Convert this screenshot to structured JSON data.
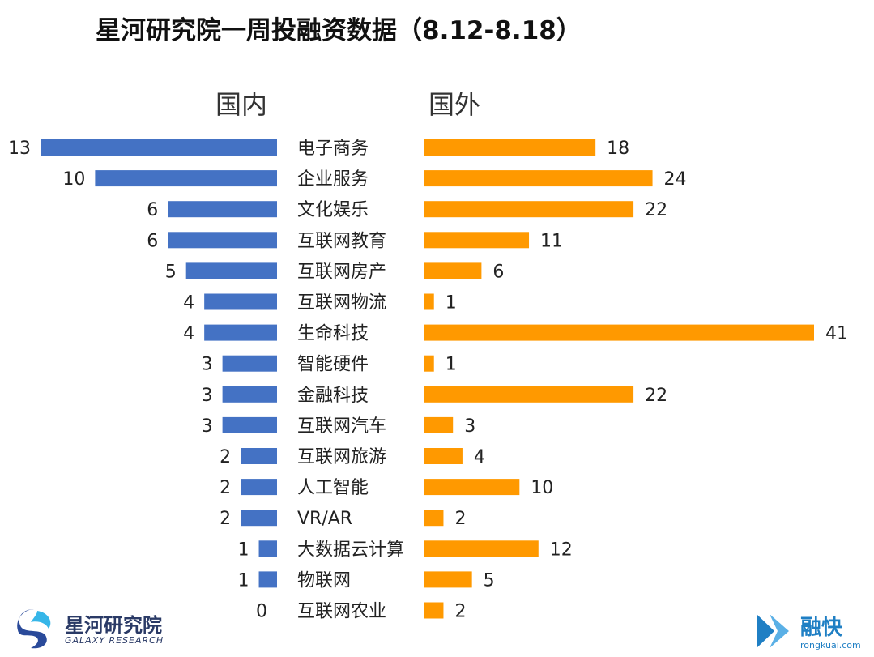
{
  "title": "星河研究院一周投融资数据（8.12-8.18）",
  "colors": {
    "domestic": "#4472c4",
    "foreign": "#ff9900",
    "text": "#222222"
  },
  "logos": {
    "left": {
      "name": "星河研究院",
      "subtitle": "GALAXY RESEARCH"
    },
    "right": {
      "name": "融快",
      "url": "rongkuai.com"
    }
  },
  "chart_data": {
    "type": "bar",
    "orientation": "horizontal-butterfly",
    "title": "星河研究院一周投融资数据（8.12-8.18）",
    "categories": [
      "电子商务",
      "企业服务",
      "文化娱乐",
      "互联网教育",
      "互联网房产",
      "互联网物流",
      "生命科技",
      "智能硬件",
      "金融科技",
      "互联网汽车",
      "互联网旅游",
      "人工智能",
      "VR/AR",
      "大数据云计算",
      "物联网",
      "互联网农业"
    ],
    "series": [
      {
        "name": "国内",
        "values": [
          13,
          10,
          6,
          6,
          5,
          4,
          4,
          3,
          3,
          3,
          2,
          2,
          2,
          1,
          1,
          0
        ]
      },
      {
        "name": "国外",
        "values": [
          18,
          24,
          22,
          11,
          6,
          1,
          41,
          1,
          22,
          3,
          4,
          10,
          2,
          12,
          5,
          2
        ]
      }
    ],
    "data_labels": true,
    "grid": false
  }
}
